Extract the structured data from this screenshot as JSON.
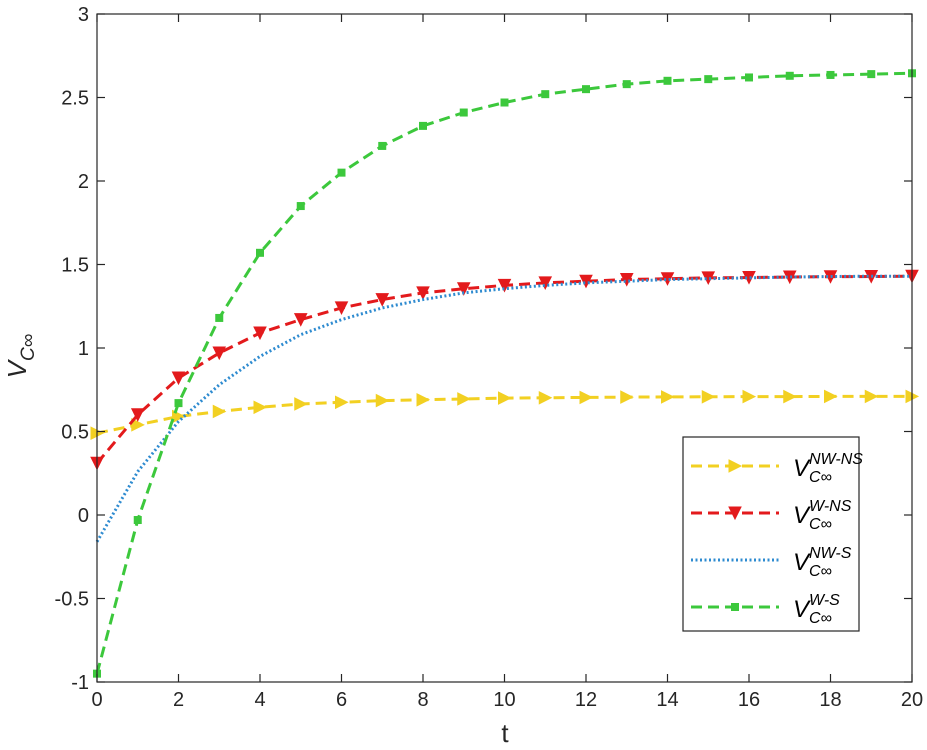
{
  "chart_data": {
    "type": "line",
    "title": "",
    "xlabel": "t",
    "ylabel_main": "V",
    "ylabel_sub": "C∞",
    "xlim": [
      0,
      20
    ],
    "ylim": [
      -1,
      3
    ],
    "xticks": [
      0,
      2,
      4,
      6,
      8,
      10,
      12,
      14,
      16,
      18,
      20
    ],
    "yticks": [
      -1,
      -0.5,
      0,
      0.5,
      1,
      1.5,
      2,
      2.5,
      3
    ],
    "xtick_labels": [
      "0",
      "2",
      "4",
      "6",
      "8",
      "10",
      "12",
      "14",
      "16",
      "18",
      "20"
    ],
    "ytick_labels": [
      "-1",
      "-0.5",
      "0",
      "0.5",
      "1",
      "1.5",
      "2",
      "2.5",
      "3"
    ],
    "grid": false,
    "legend_position": "lower-right",
    "series": [
      {
        "name": "NW-NS",
        "legend_main": "V",
        "legend_sup": "NW-NS",
        "legend_sub": "C∞",
        "color": "#F2D022",
        "linestyle": "dashed",
        "marker": "triangle-right",
        "x": [
          0,
          1,
          2,
          3,
          4,
          5,
          6,
          7,
          8,
          9,
          10,
          11,
          12,
          13,
          14,
          15,
          16,
          17,
          18,
          19,
          20
        ],
        "y": [
          0.49,
          0.54,
          0.59,
          0.62,
          0.645,
          0.665,
          0.675,
          0.685,
          0.69,
          0.695,
          0.7,
          0.702,
          0.704,
          0.706,
          0.707,
          0.708,
          0.709,
          0.709,
          0.71,
          0.71,
          0.71
        ]
      },
      {
        "name": "W-NS",
        "legend_main": "V",
        "legend_sup": "W-NS",
        "legend_sub": "C∞",
        "color": "#E31A1C",
        "linestyle": "dashed",
        "marker": "triangle-down",
        "x": [
          0,
          1,
          2,
          3,
          4,
          5,
          6,
          7,
          8,
          9,
          10,
          11,
          12,
          13,
          14,
          15,
          16,
          17,
          18,
          19,
          20
        ],
        "y": [
          0.31,
          0.6,
          0.82,
          0.97,
          1.09,
          1.17,
          1.24,
          1.29,
          1.33,
          1.355,
          1.375,
          1.39,
          1.4,
          1.41,
          1.415,
          1.42,
          1.422,
          1.425,
          1.427,
          1.428,
          1.43
        ]
      },
      {
        "name": "NW-S",
        "legend_main": "V",
        "legend_sup": "NW-S",
        "legend_sub": "C∞",
        "color": "#2E8BD0",
        "linestyle": "dotted",
        "marker": "none",
        "x": [
          0,
          1,
          2,
          3,
          4,
          5,
          6,
          7,
          8,
          9,
          10,
          11,
          12,
          13,
          14,
          15,
          16,
          17,
          18,
          19,
          20
        ],
        "y": [
          -0.16,
          0.26,
          0.56,
          0.78,
          0.95,
          1.08,
          1.17,
          1.24,
          1.29,
          1.33,
          1.355,
          1.375,
          1.39,
          1.4,
          1.41,
          1.415,
          1.42,
          1.425,
          1.428,
          1.43,
          1.43
        ]
      },
      {
        "name": "W-S",
        "legend_main": "V",
        "legend_sup": "W-S",
        "legend_sub": "C∞",
        "color": "#3CC83C",
        "linestyle": "dashed",
        "marker": "square",
        "x": [
          0,
          1,
          2,
          3,
          4,
          5,
          6,
          7,
          8,
          9,
          10,
          11,
          12,
          13,
          14,
          15,
          16,
          17,
          18,
          19,
          20
        ],
        "y": [
          -0.95,
          -0.03,
          0.67,
          1.18,
          1.57,
          1.85,
          2.05,
          2.21,
          2.33,
          2.41,
          2.47,
          2.52,
          2.55,
          2.58,
          2.6,
          2.61,
          2.62,
          2.63,
          2.635,
          2.64,
          2.645
        ]
      }
    ]
  }
}
